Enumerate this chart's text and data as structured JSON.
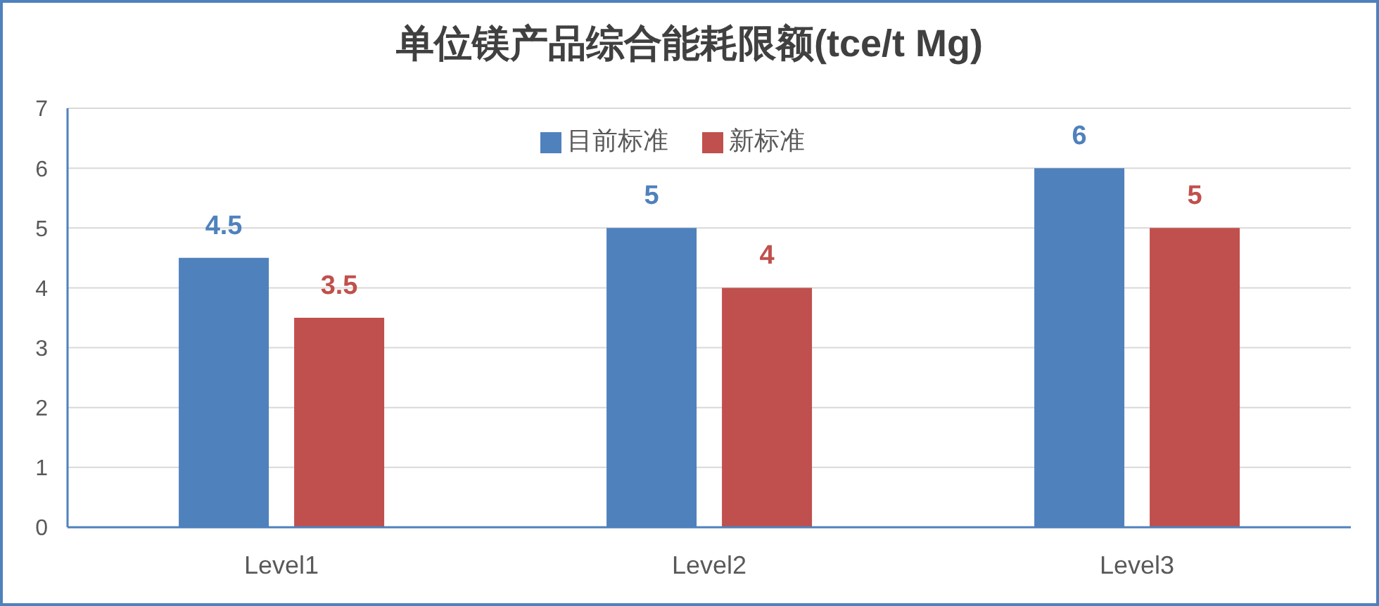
{
  "chart_data": {
    "type": "bar",
    "title": "单位镁产品综合能耗限额(tce/t Mg)",
    "categories": [
      "Level1",
      "Level2",
      "Level3"
    ],
    "series": [
      {
        "name": "目前标准",
        "color": "#4f81bd",
        "values": [
          4.5,
          5,
          6
        ]
      },
      {
        "name": "新标准",
        "color": "#c0504d",
        "values": [
          3.5,
          4,
          5
        ]
      }
    ],
    "ylim": [
      0,
      7
    ],
    "yticks": [
      0,
      1,
      2,
      3,
      4,
      5,
      6,
      7
    ],
    "grid": "y",
    "legend": "top",
    "data_labels": true
  }
}
